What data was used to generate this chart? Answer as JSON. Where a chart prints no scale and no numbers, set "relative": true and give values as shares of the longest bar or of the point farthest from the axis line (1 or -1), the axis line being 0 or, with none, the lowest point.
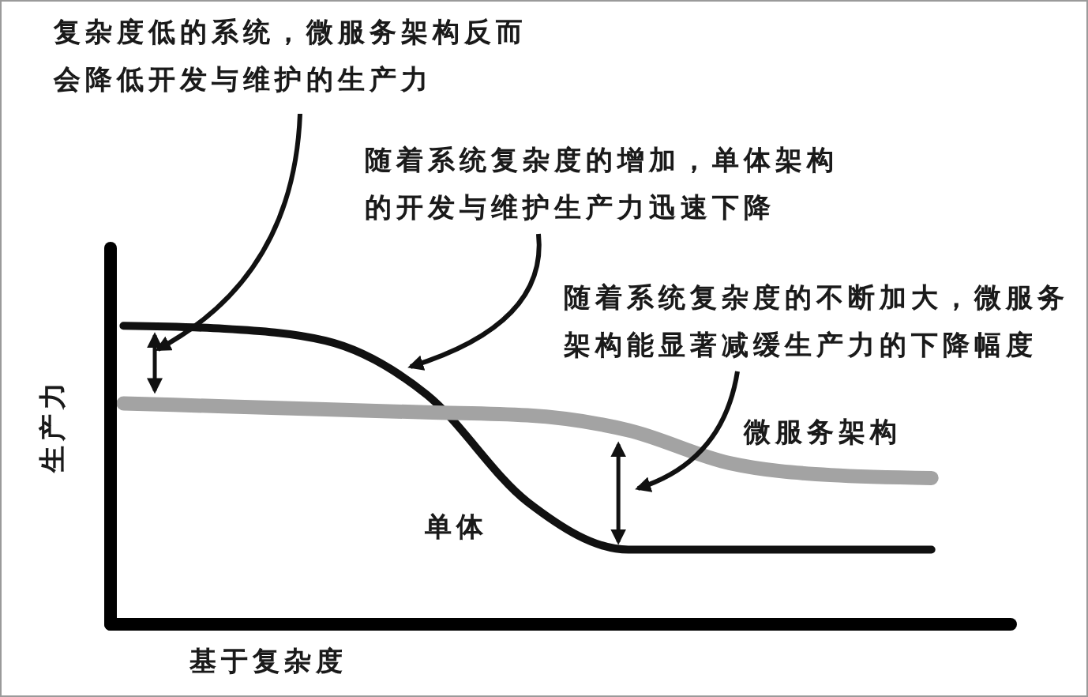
{
  "chart_data": {
    "type": "line",
    "relative": true,
    "xlabel": "基于复杂度",
    "ylabel": "生产力",
    "categories": [
      null,
      null,
      null,
      null,
      null,
      null,
      null,
      null,
      null
    ],
    "series": [
      {
        "name": "单体",
        "color": "#111111",
        "values": [
          1,
          0.99,
          0.95,
          0.77,
          0.41,
          0.25,
          0.25,
          0.25,
          0.25
        ]
      },
      {
        "name": "微服务架构",
        "color": "#a3a3a3",
        "values": [
          0.74,
          0.73,
          0.72,
          0.71,
          0.7,
          0.65,
          0.54,
          0.5,
          0.49
        ]
      }
    ],
    "annotations": [
      "复杂度低的系统，微服务架构反而会降低开发与维护的生产力",
      "随着系统复杂度的增加，单体架构的开发与维护生产力迅速下降",
      "随着系统复杂度的不断加大，微服务架构能显著减缓生产力的下降幅度"
    ]
  }
}
